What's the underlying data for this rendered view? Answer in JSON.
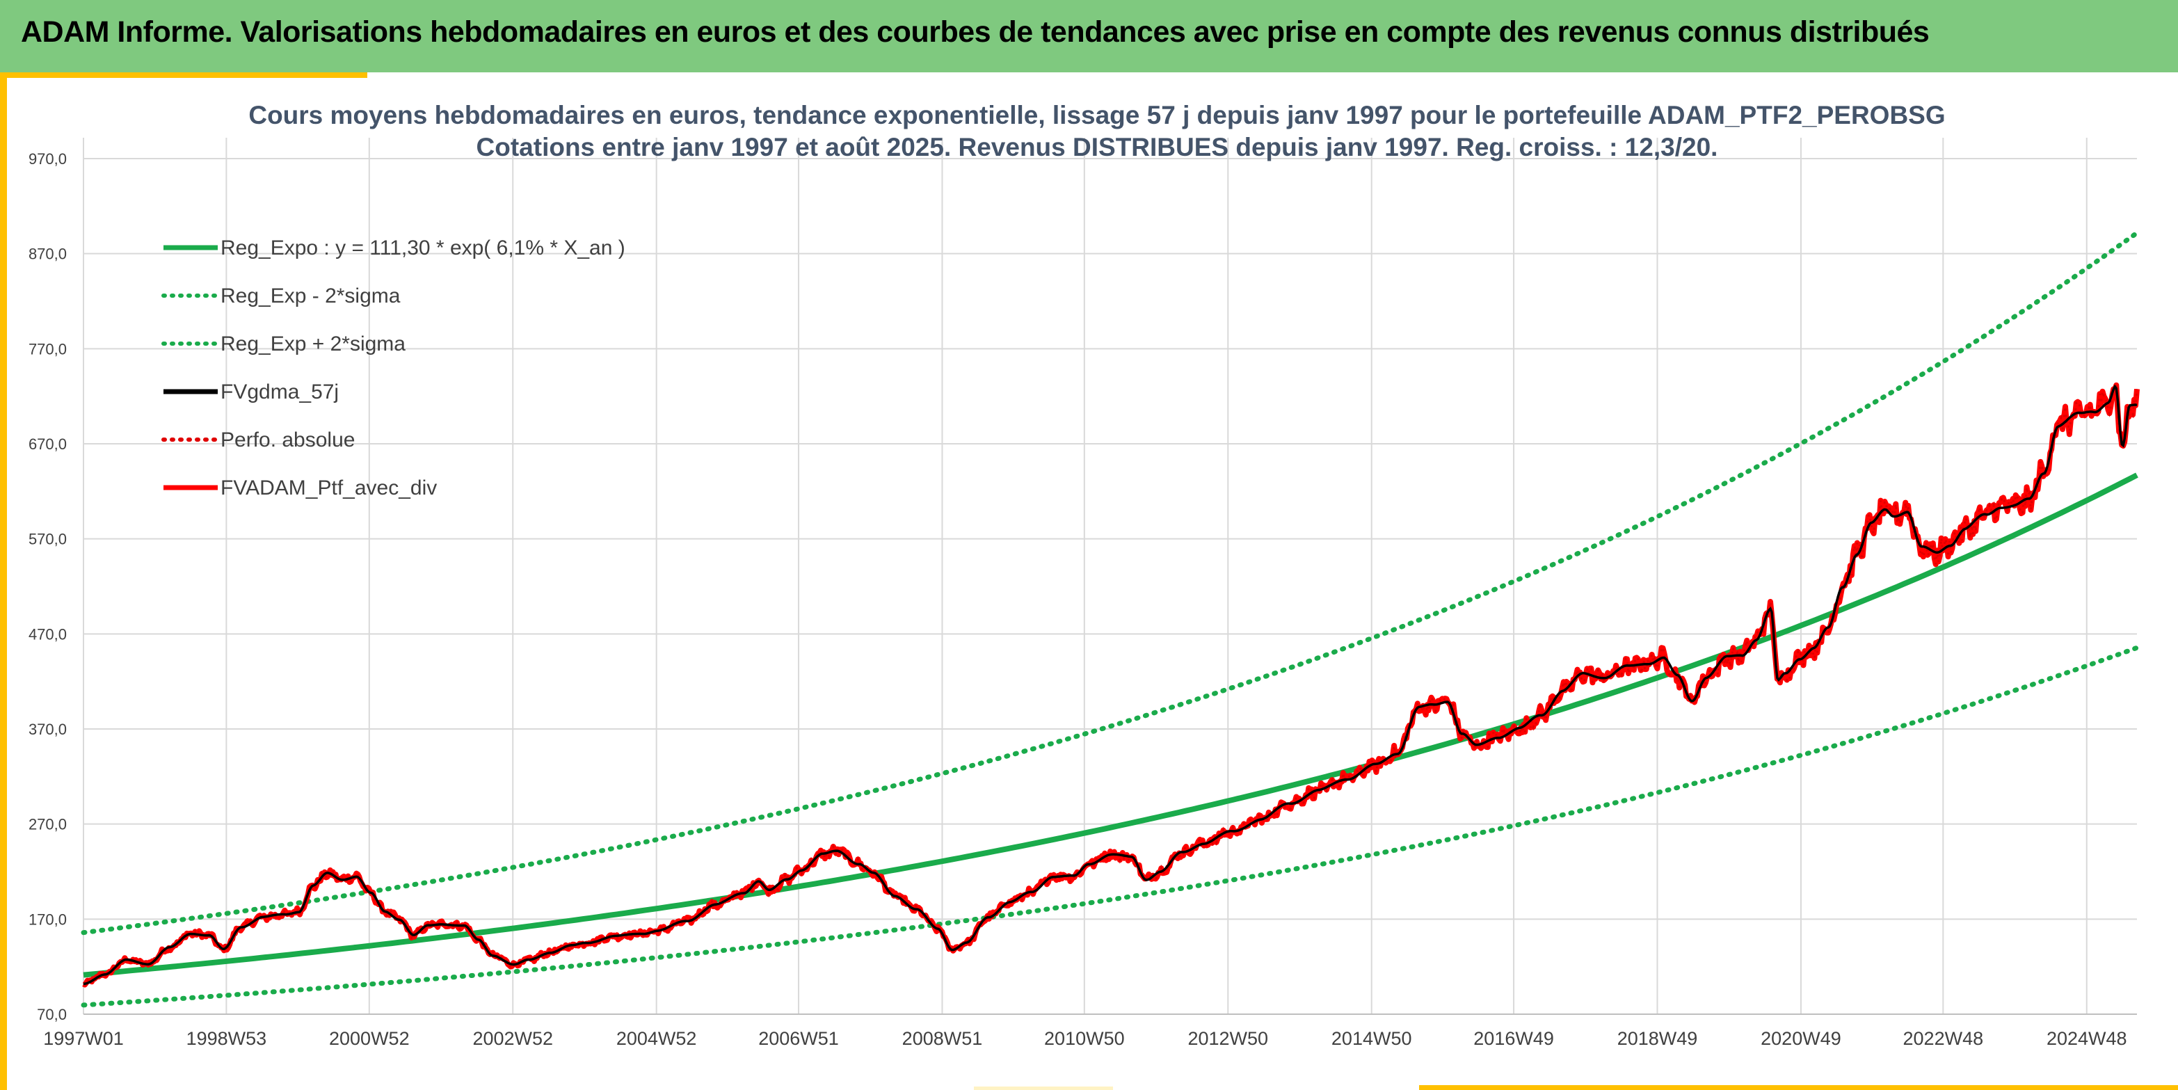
{
  "banner": {
    "title": "ADAM Informe. Valorisations hebdomadaires en euros et des courbes de tendances avec prise en compte des revenus connus distribués",
    "background": "#7fc97f"
  },
  "chart_data": {
    "type": "line",
    "title": "Cours moyens hebdomadaires en euros, tendance exponentielle, lissage 57 j depuis janv 1997 pour le portefeuille ADAM_PTF2_PEROBSG",
    "subtitle": "Cotations entre janv 1997 et août 2025. Revenus DISTRIBUES depuis janv 1997. Reg. croiss. : 12,3/20.",
    "xlabel": "",
    "ylabel": "",
    "x_range": [
      1997.0,
      2025.6
    ],
    "ylim": [
      70,
      970
    ],
    "y_ticks": [
      "970,0",
      "870,0",
      "770,0",
      "670,0",
      "570,0",
      "470,0",
      "370,0",
      "270,0",
      "170,0",
      "70,0"
    ],
    "x_ticks": [
      {
        "label": "1997W01",
        "t": 1997.0
      },
      {
        "label": "1998W53",
        "t": 1998.99
      },
      {
        "label": "2000W52",
        "t": 2000.98
      },
      {
        "label": "2002W52",
        "t": 2002.98
      },
      {
        "label": "2004W52",
        "t": 2004.98
      },
      {
        "label": "2006W51",
        "t": 2006.96
      },
      {
        "label": "2008W51",
        "t": 2008.96
      },
      {
        "label": "2010W50",
        "t": 2010.94
      },
      {
        "label": "2012W50",
        "t": 2012.94
      },
      {
        "label": "2014W50",
        "t": 2014.94
      },
      {
        "label": "2016W49",
        "t": 2016.92
      },
      {
        "label": "2018W49",
        "t": 2018.92
      },
      {
        "label": "2020W49",
        "t": 2020.92
      },
      {
        "label": "2022W48",
        "t": 2022.9
      },
      {
        "label": "2024W48",
        "t": 2024.9
      }
    ],
    "grid": true,
    "legend_position": "top-left",
    "legend": [
      {
        "label": "Reg_Expo : y = 111,30 * exp( 6,1% *  X_an )",
        "color": "#1aab4b",
        "style": "solid"
      },
      {
        "label": "Reg_Exp - 2*sigma",
        "color": "#1aab4b",
        "style": "dotted"
      },
      {
        "label": "Reg_Exp + 2*sigma",
        "color": "#1aab4b",
        "style": "dotted"
      },
      {
        "label": "FVgdma_57j",
        "color": "#000000",
        "style": "solid"
      },
      {
        "label": "Perfo. absolue",
        "color": "#e00000",
        "style": "dotted"
      },
      {
        "label": "FVADAM_Ptf_avec_div",
        "color": "#ff0000",
        "style": "solid"
      }
    ],
    "trend": {
      "base": 111.3,
      "rate": 0.061,
      "lower_factor": 0.715,
      "upper_factor": 1.4
    },
    "series_points": [
      [
        1997.0,
        102
      ],
      [
        1997.3,
        112
      ],
      [
        1997.6,
        127
      ],
      [
        1997.9,
        123
      ],
      [
        1998.2,
        140
      ],
      [
        1998.5,
        155
      ],
      [
        1998.75,
        153
      ],
      [
        1998.95,
        138
      ],
      [
        1999.2,
        162
      ],
      [
        1999.5,
        172
      ],
      [
        1999.8,
        175
      ],
      [
        2000.0,
        178
      ],
      [
        2000.2,
        205
      ],
      [
        2000.4,
        218
      ],
      [
        2000.6,
        212
      ],
      [
        2000.8,
        215
      ],
      [
        2001.0,
        197
      ],
      [
        2001.2,
        178
      ],
      [
        2001.4,
        170
      ],
      [
        2001.6,
        153
      ],
      [
        2001.8,
        163
      ],
      [
        2002.0,
        165
      ],
      [
        2002.3,
        163
      ],
      [
        2002.5,
        148
      ],
      [
        2002.7,
        132
      ],
      [
        2003.0,
        122
      ],
      [
        2003.2,
        127
      ],
      [
        2003.5,
        135
      ],
      [
        2003.8,
        142
      ],
      [
        2004.0,
        145
      ],
      [
        2004.4,
        152
      ],
      [
        2004.8,
        155
      ],
      [
        2005.0,
        158
      ],
      [
        2005.4,
        168
      ],
      [
        2005.8,
        185
      ],
      [
        2006.2,
        198
      ],
      [
        2006.4,
        210
      ],
      [
        2006.55,
        200
      ],
      [
        2006.8,
        212
      ],
      [
        2007.0,
        222
      ],
      [
        2007.3,
        238
      ],
      [
        2007.5,
        242
      ],
      [
        2007.8,
        228
      ],
      [
        2008.0,
        218
      ],
      [
        2008.3,
        195
      ],
      [
        2008.6,
        180
      ],
      [
        2008.9,
        160
      ],
      [
        2009.1,
        138
      ],
      [
        2009.3,
        145
      ],
      [
        2009.6,
        172
      ],
      [
        2009.9,
        188
      ],
      [
        2010.2,
        198
      ],
      [
        2010.5,
        215
      ],
      [
        2010.8,
        215
      ],
      [
        2011.0,
        228
      ],
      [
        2011.3,
        238
      ],
      [
        2011.6,
        235
      ],
      [
        2011.8,
        212
      ],
      [
        2012.0,
        220
      ],
      [
        2012.3,
        240
      ],
      [
        2012.6,
        250
      ],
      [
        2013.0,
        262
      ],
      [
        2013.4,
        275
      ],
      [
        2013.8,
        292
      ],
      [
        2014.2,
        305
      ],
      [
        2014.6,
        318
      ],
      [
        2015.0,
        332
      ],
      [
        2015.3,
        345
      ],
      [
        2015.6,
        392
      ],
      [
        2015.8,
        395
      ],
      [
        2016.0,
        400
      ],
      [
        2016.2,
        365
      ],
      [
        2016.4,
        352
      ],
      [
        2016.7,
        362
      ],
      [
        2017.0,
        370
      ],
      [
        2017.3,
        385
      ],
      [
        2017.6,
        410
      ],
      [
        2017.9,
        428
      ],
      [
        2018.2,
        425
      ],
      [
        2018.5,
        435
      ],
      [
        2018.8,
        440
      ],
      [
        2019.0,
        445
      ],
      [
        2019.2,
        425
      ],
      [
        2019.4,
        400
      ],
      [
        2019.6,
        425
      ],
      [
        2019.9,
        445
      ],
      [
        2020.1,
        448
      ],
      [
        2020.3,
        465
      ],
      [
        2020.5,
        495
      ],
      [
        2020.6,
        420
      ],
      [
        2020.7,
        428
      ],
      [
        2020.9,
        445
      ],
      [
        2021.1,
        455
      ],
      [
        2021.3,
        475
      ],
      [
        2021.5,
        520
      ],
      [
        2021.7,
        555
      ],
      [
        2021.9,
        585
      ],
      [
        2022.1,
        600
      ],
      [
        2022.2,
        595
      ],
      [
        2022.4,
        600
      ],
      [
        2022.6,
        560
      ],
      [
        2022.8,
        555
      ],
      [
        2023.0,
        565
      ],
      [
        2023.2,
        580
      ],
      [
        2023.5,
        595
      ],
      [
        2023.7,
        605
      ],
      [
        2023.9,
        605
      ],
      [
        2024.1,
        610
      ],
      [
        2024.3,
        640
      ],
      [
        2024.5,
        690
      ],
      [
        2024.8,
        700
      ],
      [
        2025.0,
        705
      ],
      [
        2025.2,
        715
      ],
      [
        2025.3,
        730
      ],
      [
        2025.4,
        665
      ],
      [
        2025.5,
        708
      ],
      [
        2025.6,
        710
      ]
    ],
    "colors": {
      "trend": "#1aab4b",
      "price": "#ff0000",
      "smoothed": "#000000",
      "grid": "#d9d9d9",
      "title": "#44546a"
    }
  }
}
